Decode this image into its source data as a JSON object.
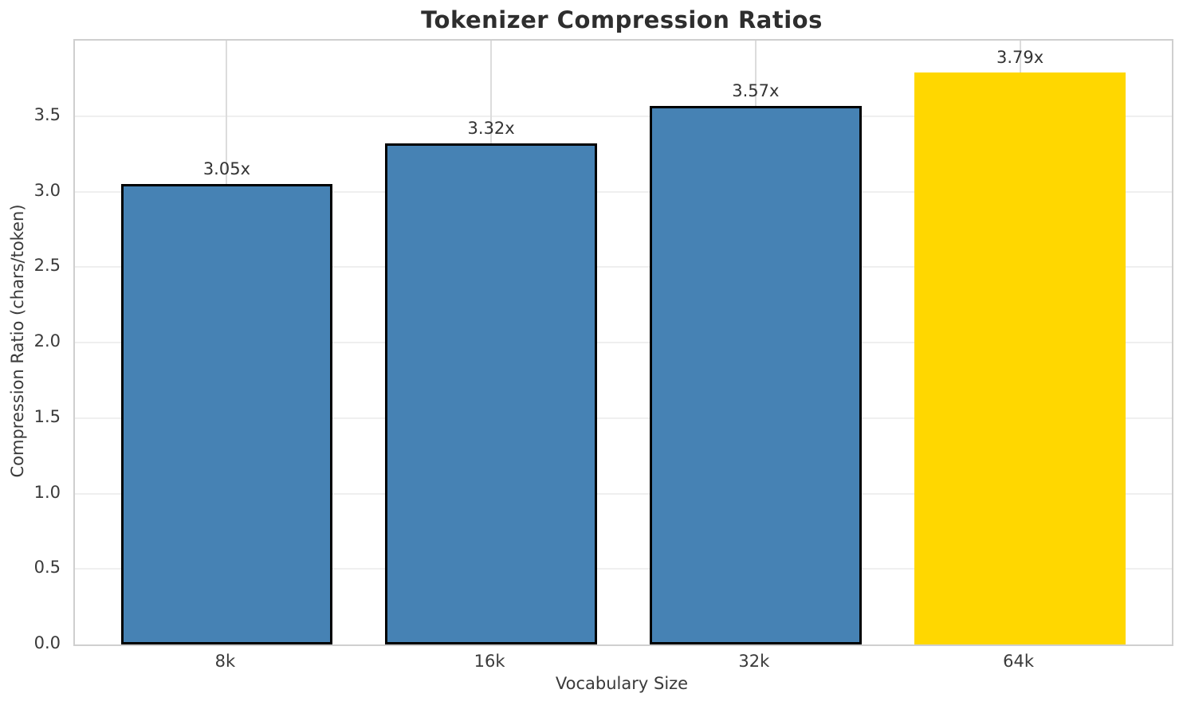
{
  "chart_data": {
    "type": "bar",
    "title": "Tokenizer Compression Ratios",
    "xlabel": "Vocabulary Size",
    "ylabel": "Compression Ratio (chars/token)",
    "categories": [
      "8k",
      "16k",
      "32k",
      "64k"
    ],
    "values": [
      3.05,
      3.32,
      3.57,
      3.79
    ],
    "bar_labels": [
      "3.05x",
      "3.32x",
      "3.57x",
      "3.79x"
    ],
    "highlight_index": 3,
    "ylim": [
      0,
      4.0
    ],
    "yticks": [
      "0.0",
      "0.5",
      "1.0",
      "1.5",
      "2.0",
      "2.5",
      "3.0",
      "3.5"
    ],
    "grid": true,
    "legend": "none",
    "colors": {
      "bar": "#4682B4",
      "highlight": "#FFD700",
      "bar_edge": "#000000",
      "grid_horizontal": "#efefef",
      "grid_vertical": "#dcdcdc",
      "spine": "#cfcfcf",
      "title_text": "#2e2e2e",
      "tick_text": "#3a3a3a"
    }
  }
}
